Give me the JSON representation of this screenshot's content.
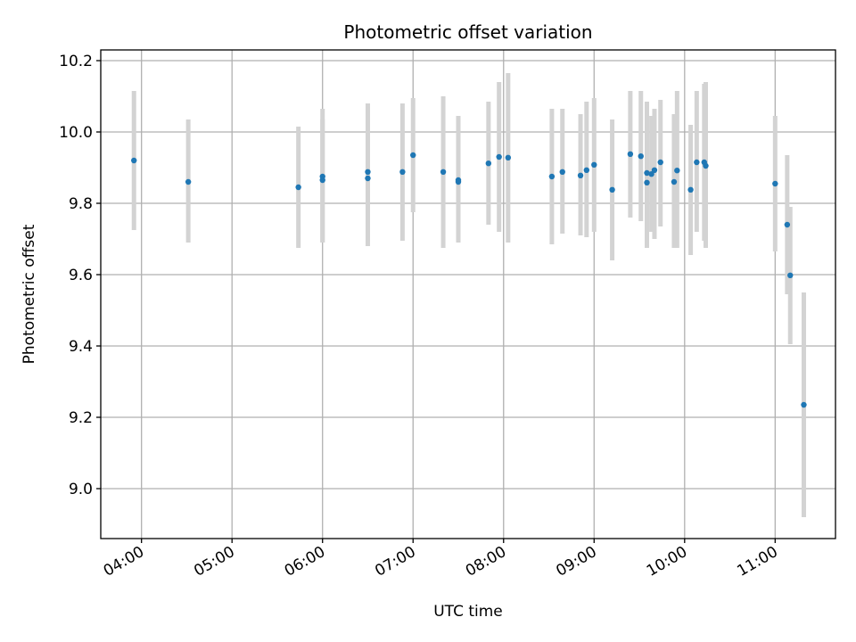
{
  "chart_data": {
    "type": "scatter",
    "title": "Photometric offset variation",
    "xlabel": "UTC time",
    "ylabel": "Photometric offset",
    "xlim": [
      "03:33",
      "11:40"
    ],
    "ylim": [
      8.86,
      10.23
    ],
    "grid": true,
    "xticks": [
      "04:00",
      "05:00",
      "06:00",
      "07:00",
      "08:00",
      "09:00",
      "10:00",
      "11:00"
    ],
    "yticks": [
      "9.0",
      "9.2",
      "9.4",
      "9.6",
      "9.8",
      "10.0",
      "10.2"
    ],
    "points": [
      {
        "x": "03:55",
        "y": 9.92,
        "ylow": 9.725,
        "yhigh": 10.115
      },
      {
        "x": "04:31",
        "y": 9.86,
        "ylow": 9.69,
        "yhigh": 10.035
      },
      {
        "x": "05:44",
        "y": 9.845,
        "ylow": 9.675,
        "yhigh": 10.015
      },
      {
        "x": "06:00",
        "y": 9.875,
        "ylow": 9.69,
        "yhigh": 10.065
      },
      {
        "x": "06:00",
        "y": 9.865,
        "ylow": 9.69,
        "yhigh": 10.035
      },
      {
        "x": "06:30",
        "y": 9.87,
        "ylow": 9.68,
        "yhigh": 10.08
      },
      {
        "x": "06:30",
        "y": 9.888,
        "ylow": 9.695,
        "yhigh": 10.07
      },
      {
        "x": "06:53",
        "y": 9.888,
        "ylow": 9.695,
        "yhigh": 10.08
      },
      {
        "x": "07:00",
        "y": 9.935,
        "ylow": 9.775,
        "yhigh": 10.095
      },
      {
        "x": "07:20",
        "y": 9.888,
        "ylow": 9.675,
        "yhigh": 10.1
      },
      {
        "x": "07:30",
        "y": 9.865,
        "ylow": 9.69,
        "yhigh": 10.04
      },
      {
        "x": "07:30",
        "y": 9.86,
        "ylow": 9.69,
        "yhigh": 10.045
      },
      {
        "x": "07:50",
        "y": 9.912,
        "ylow": 9.74,
        "yhigh": 10.085
      },
      {
        "x": "07:57",
        "y": 9.93,
        "ylow": 9.72,
        "yhigh": 10.14
      },
      {
        "x": "08:03",
        "y": 9.928,
        "ylow": 9.69,
        "yhigh": 10.165
      },
      {
        "x": "08:32",
        "y": 9.875,
        "ylow": 9.685,
        "yhigh": 10.065
      },
      {
        "x": "08:39",
        "y": 9.888,
        "ylow": 9.715,
        "yhigh": 10.065
      },
      {
        "x": "08:51",
        "y": 9.878,
        "ylow": 9.71,
        "yhigh": 10.05
      },
      {
        "x": "08:55",
        "y": 9.893,
        "ylow": 9.705,
        "yhigh": 10.085
      },
      {
        "x": "09:00",
        "y": 9.908,
        "ylow": 9.72,
        "yhigh": 10.095
      },
      {
        "x": "09:12",
        "y": 9.838,
        "ylow": 9.64,
        "yhigh": 10.035
      },
      {
        "x": "09:24",
        "y": 9.938,
        "ylow": 9.76,
        "yhigh": 10.115
      },
      {
        "x": "09:31",
        "y": 9.932,
        "ylow": 9.75,
        "yhigh": 10.115
      },
      {
        "x": "09:35",
        "y": 9.885,
        "ylow": 9.675,
        "yhigh": 10.085
      },
      {
        "x": "09:35",
        "y": 9.858,
        "ylow": 9.68,
        "yhigh": 10.035
      },
      {
        "x": "09:38",
        "y": 9.882,
        "ylow": 9.72,
        "yhigh": 10.045
      },
      {
        "x": "09:40",
        "y": 9.893,
        "ylow": 9.7,
        "yhigh": 10.065
      },
      {
        "x": "09:44",
        "y": 9.915,
        "ylow": 9.735,
        "yhigh": 10.09
      },
      {
        "x": "09:53",
        "y": 9.86,
        "ylow": 9.675,
        "yhigh": 10.05
      },
      {
        "x": "09:55",
        "y": 9.892,
        "ylow": 9.675,
        "yhigh": 10.115
      },
      {
        "x": "10:04",
        "y": 9.838,
        "ylow": 9.655,
        "yhigh": 10.02
      },
      {
        "x": "10:08",
        "y": 9.915,
        "ylow": 9.72,
        "yhigh": 10.115
      },
      {
        "x": "10:13",
        "y": 9.915,
        "ylow": 9.695,
        "yhigh": 10.135
      },
      {
        "x": "10:14",
        "y": 9.905,
        "ylow": 9.675,
        "yhigh": 10.14
      },
      {
        "x": "11:00",
        "y": 9.855,
        "ylow": 9.665,
        "yhigh": 10.045
      },
      {
        "x": "11:08",
        "y": 9.74,
        "ylow": 9.545,
        "yhigh": 9.935
      },
      {
        "x": "11:10",
        "y": 9.598,
        "ylow": 9.405,
        "yhigh": 9.79
      },
      {
        "x": "11:19",
        "y": 9.235,
        "ylow": 8.92,
        "yhigh": 9.55
      }
    ],
    "colors": {
      "points": "#1f77b4",
      "errorbars": "#d3d3d3",
      "grid": "#b0b0b0"
    }
  }
}
